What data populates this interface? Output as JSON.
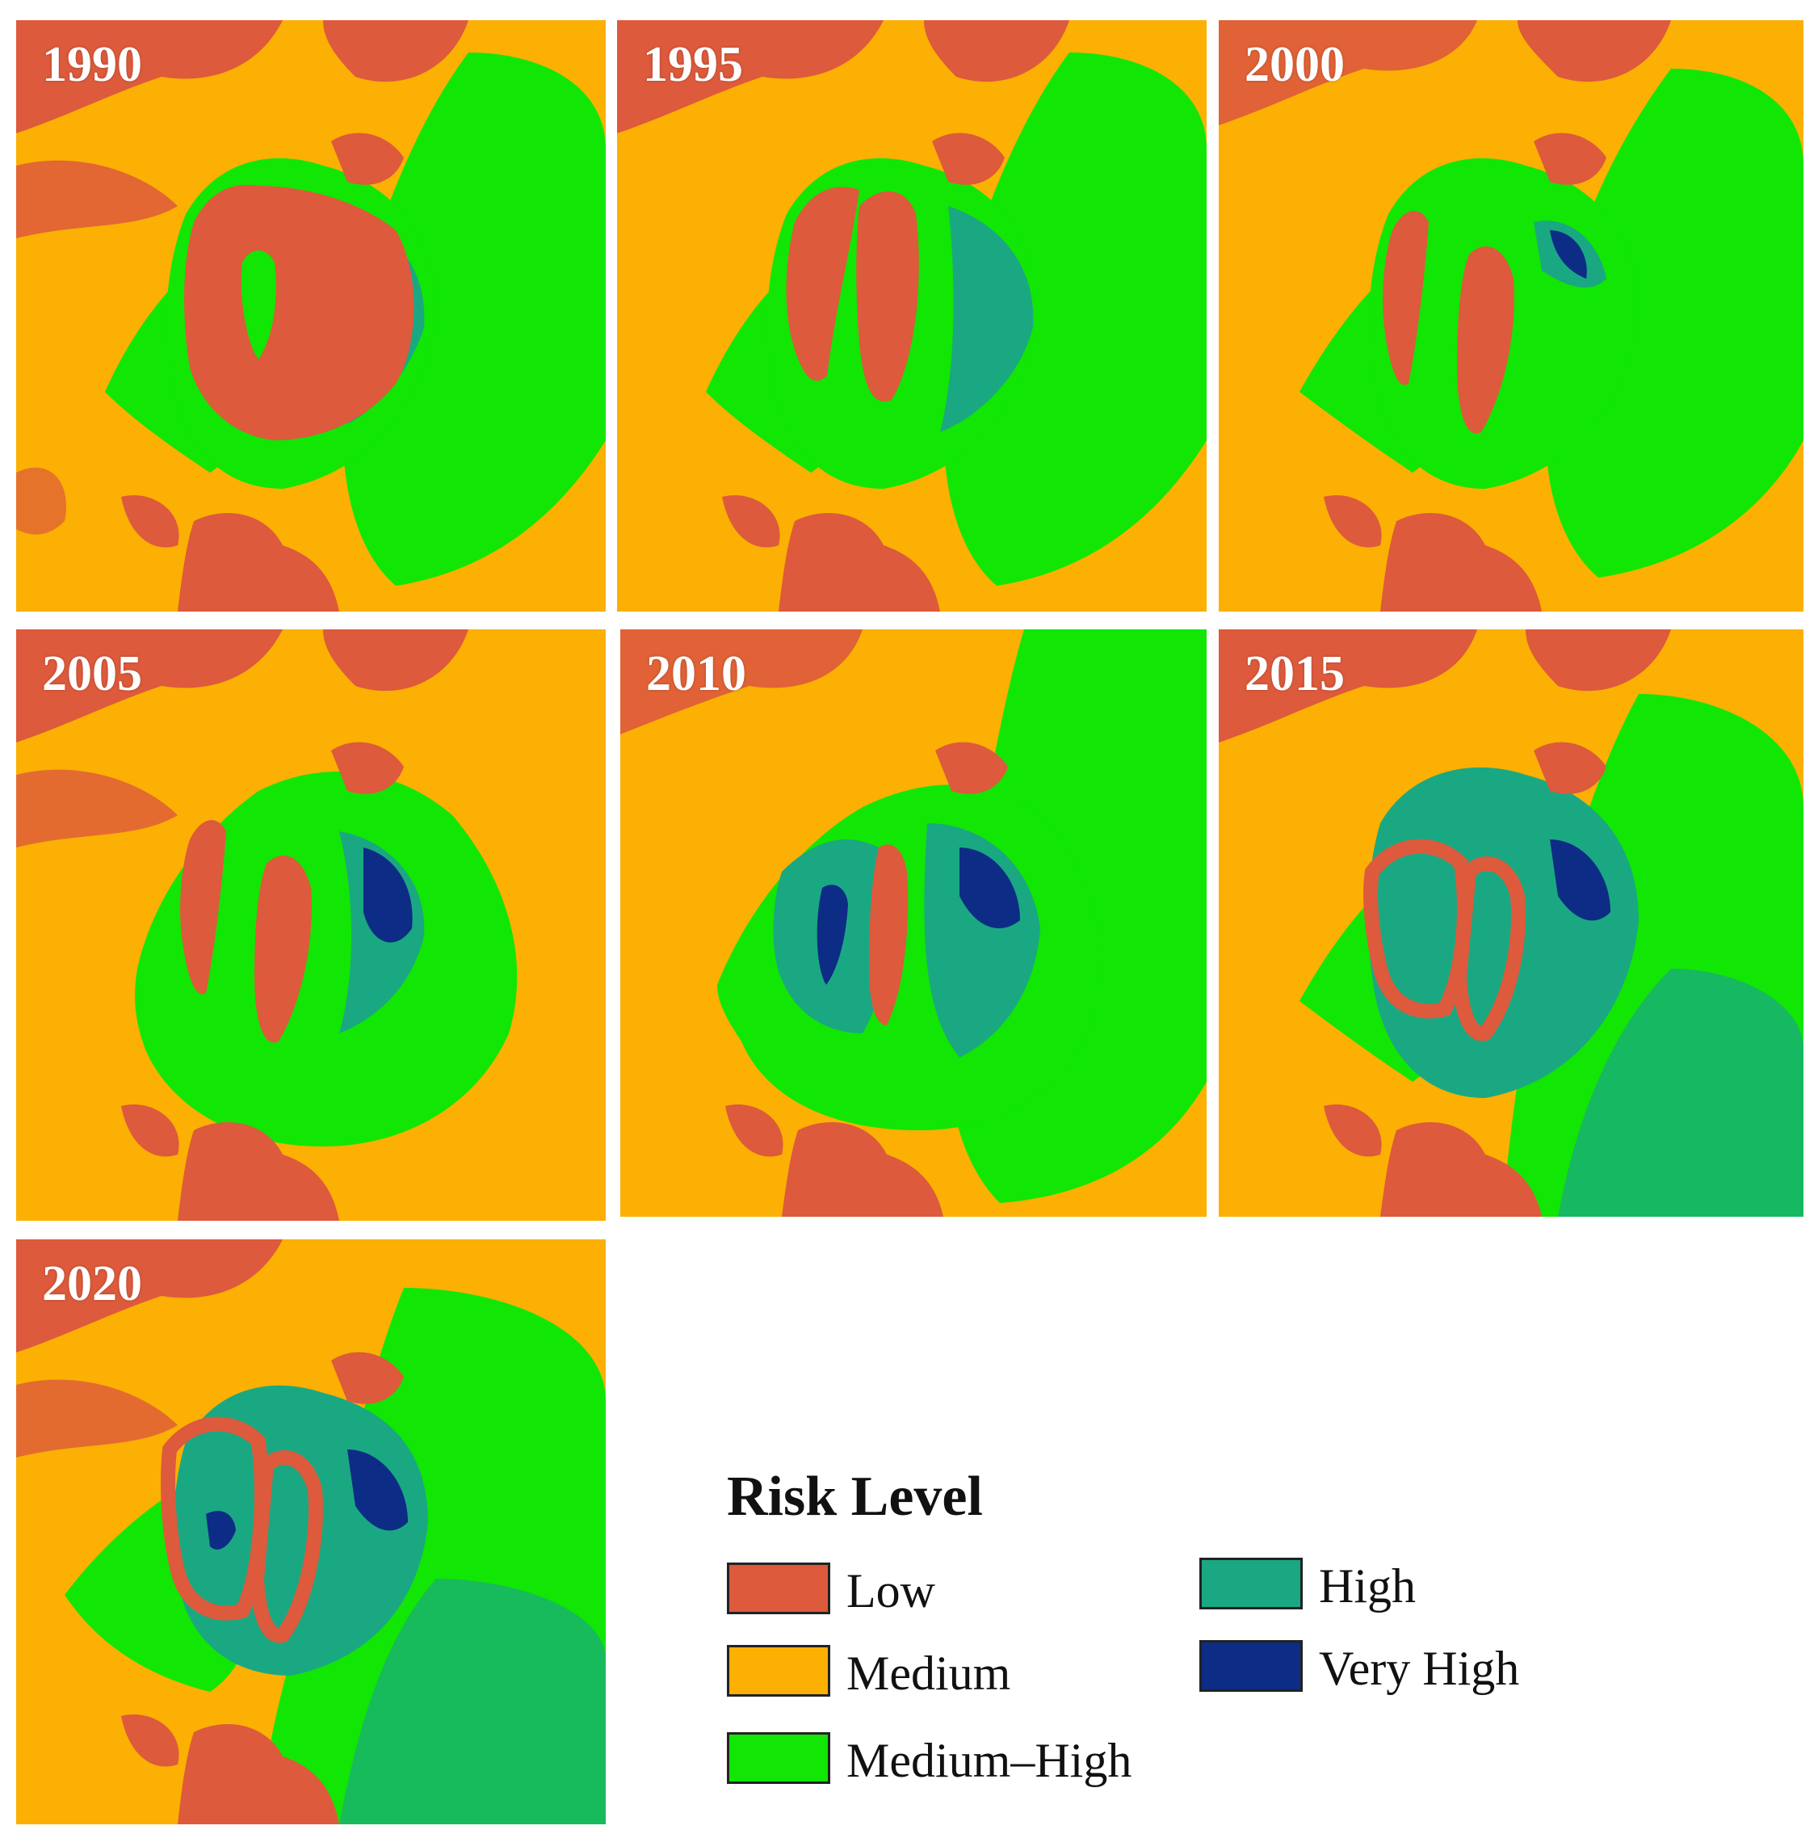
{
  "panels": [
    {
      "id": "p1990",
      "year": "1990"
    },
    {
      "id": "p1995",
      "year": "1995"
    },
    {
      "id": "p2000",
      "year": "2000"
    },
    {
      "id": "p2005",
      "year": "2005"
    },
    {
      "id": "p2010",
      "year": "2010"
    },
    {
      "id": "p2015",
      "year": "2015"
    },
    {
      "id": "p2020",
      "year": "2020"
    }
  ],
  "legend": {
    "title": "Risk Level",
    "items": [
      {
        "label": "Low",
        "color": "#dd5a3c"
      },
      {
        "label": "Medium",
        "color": "#fbb003"
      },
      {
        "label": "Medium–High",
        "color": "#11e604"
      },
      {
        "label": "High",
        "color": "#1aa882"
      },
      {
        "label": "Very High",
        "color": "#0d2c85"
      }
    ]
  },
  "colors": {
    "low": "#dd5a3c",
    "medium": "#fbb003",
    "medium_high": "#11e604",
    "high": "#1aa882",
    "very_high": "#0d2c85"
  }
}
